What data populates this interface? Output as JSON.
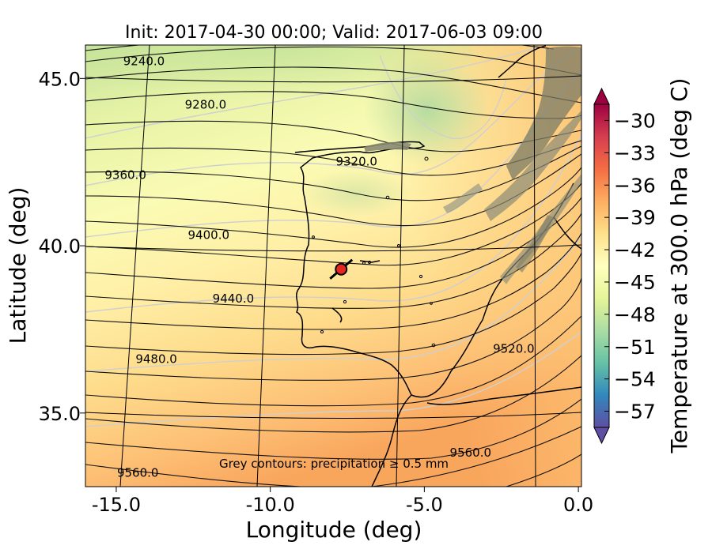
{
  "figure": {
    "title": "Init: 2017-04-30 00:00; Valid: 2017-06-03 09:00",
    "xlabel": "Longitude (deg)",
    "ylabel": "Latitude (deg)",
    "annotation": "Grey contours: precipitation ≥ 0.5 mm"
  },
  "axes": {
    "x_ticks": [
      {
        "value": -15,
        "label": "-15.0"
      },
      {
        "value": -10,
        "label": "-10.0"
      },
      {
        "value": -5,
        "label": "-5.0"
      },
      {
        "value": 0,
        "label": "0.0"
      }
    ],
    "y_ticks": [
      {
        "value": 45,
        "label": "45.0"
      },
      {
        "value": 40,
        "label": "40.0"
      },
      {
        "value": 35,
        "label": "35.0"
      }
    ],
    "xlim": [
      -16,
      0.1
    ],
    "ylim": [
      32.8,
      46.0
    ]
  },
  "colorbar": {
    "label": "Temperature at 300.0 hPa (deg C)",
    "ticks": [
      "−30",
      "−33",
      "−36",
      "−39",
      "−42",
      "−45",
      "−48",
      "−51",
      "−54",
      "−57"
    ],
    "range": [
      -58.5,
      -28.5
    ],
    "extend": "both",
    "colormap": "Spectral_r"
  },
  "contours": {
    "variable": "geopotential height",
    "labels": [
      {
        "text": "9240.0",
        "lon": -14.1,
        "lat": 45.4
      },
      {
        "text": "9280.0",
        "lon": -12.1,
        "lat": 44.1
      },
      {
        "text": "9320.0",
        "lon": -7.2,
        "lat": 42.4
      },
      {
        "text": "9360.0",
        "lon": -14.7,
        "lat": 42.0
      },
      {
        "text": "9400.0",
        "lon": -12.0,
        "lat": 40.2
      },
      {
        "text": "9440.0",
        "lon": -11.2,
        "lat": 38.3
      },
      {
        "text": "9480.0",
        "lon": -13.7,
        "lat": 36.5
      },
      {
        "text": "9520.0",
        "lon": -2.1,
        "lat": 36.8
      },
      {
        "text": "9560.0",
        "lon": -3.5,
        "lat": 33.7
      },
      {
        "text": "9560.0",
        "lon": -14.3,
        "lat": 33.1
      }
    ]
  },
  "marker": {
    "lon": -7.7,
    "lat": 39.3,
    "color": "#e8261f"
  }
}
